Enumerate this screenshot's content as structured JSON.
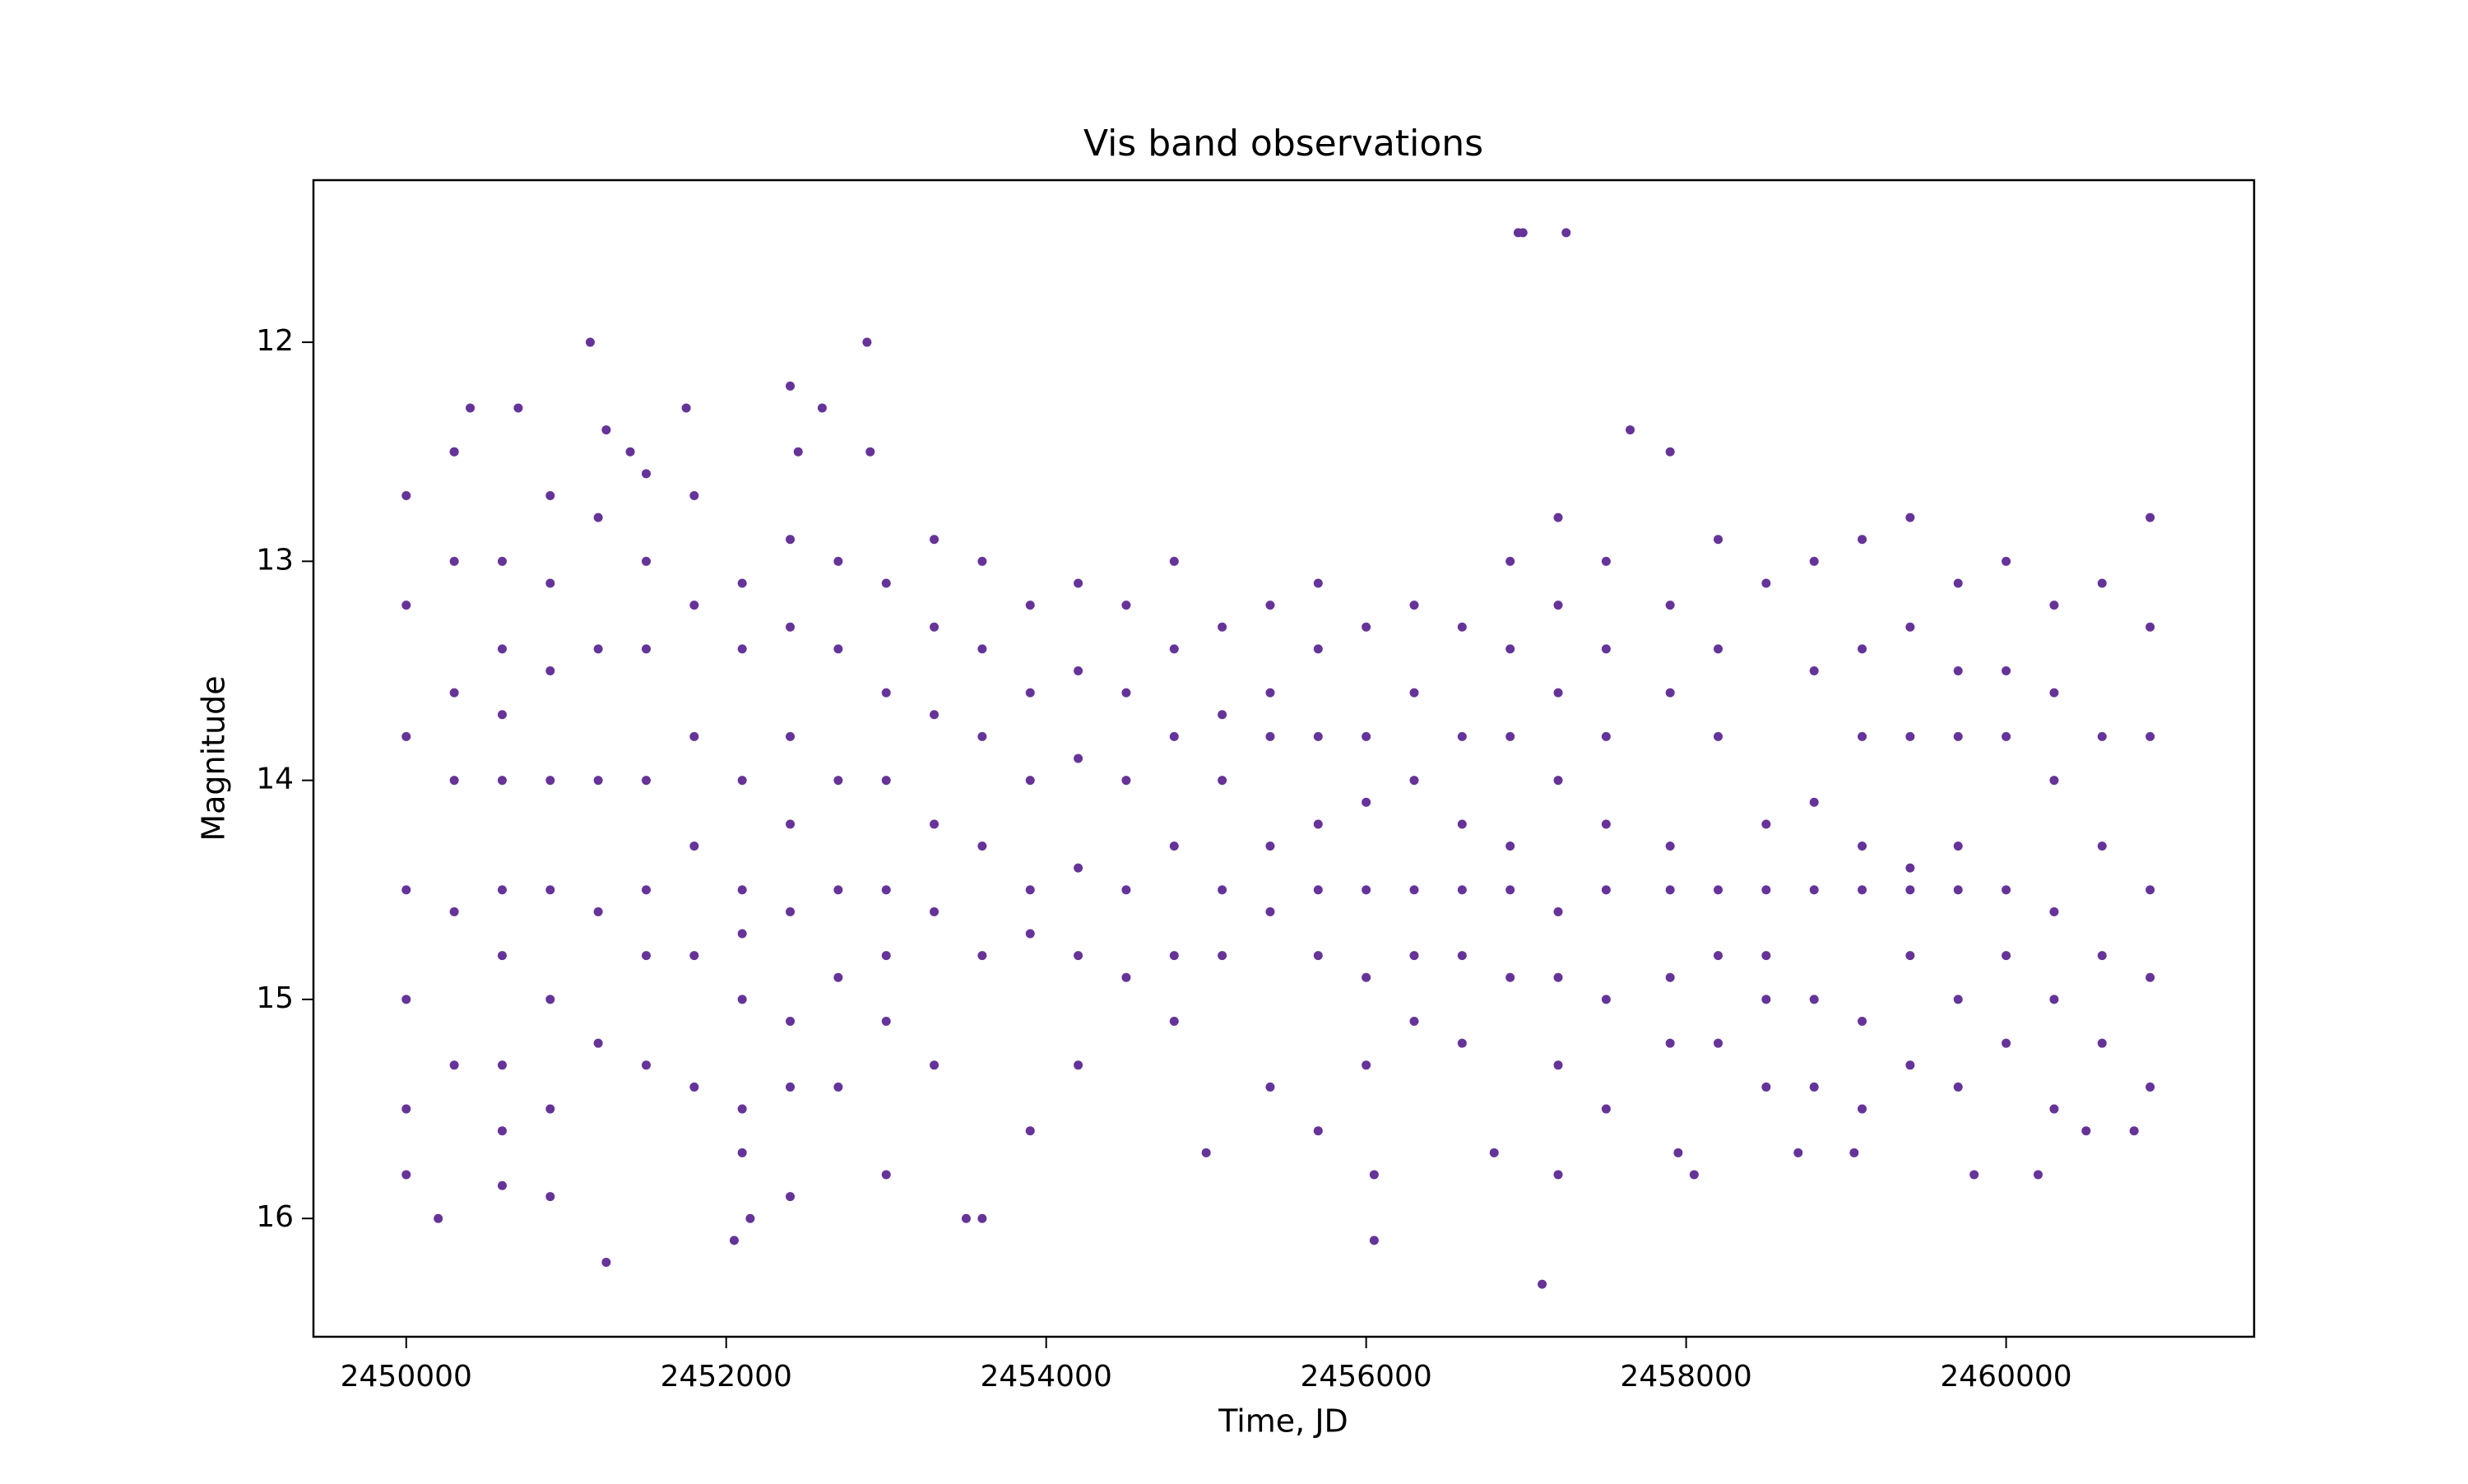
{
  "chart_data": {
    "type": "scatter",
    "title": "Vis band observations",
    "x_label": "Time, JD",
    "y_label": "Magnitude",
    "color": "#663399",
    "xlim": [
      2449420,
      2461550
    ],
    "ylim": [
      11.26,
      16.54
    ],
    "y_inverted": true,
    "xticks": [
      2450000,
      2452000,
      2454000,
      2456000,
      2458000,
      2460000
    ],
    "yticks": [
      12,
      13,
      14,
      15,
      16
    ],
    "x": [
      2450000,
      2450000,
      2450000,
      2450000,
      2450000,
      2450000,
      2450300,
      2450300,
      2450300,
      2450300,
      2450300,
      2450300,
      2450600,
      2450600,
      2450600,
      2450600,
      2450600,
      2450600,
      2450600,
      2450600,
      2450900,
      2450900,
      2450900,
      2450900,
      2450900,
      2450900,
      2450900,
      2451200,
      2451200,
      2451200,
      2451200,
      2451200,
      2451500,
      2451500,
      2451500,
      2451500,
      2451500,
      2451500,
      2451500,
      2451800,
      2451800,
      2451800,
      2451800,
      2451800,
      2451800,
      2452100,
      2452100,
      2452100,
      2452100,
      2452100,
      2452100,
      2452100,
      2452100,
      2452400,
      2452400,
      2452400,
      2452400,
      2452400,
      2452400,
      2452400,
      2452700,
      2452700,
      2452700,
      2452700,
      2452700,
      2452700,
      2453000,
      2453000,
      2453000,
      2453000,
      2453000,
      2453000,
      2453300,
      2453300,
      2453300,
      2453300,
      2453300,
      2453300,
      2453600,
      2453600,
      2453600,
      2453600,
      2453600,
      2453900,
      2453900,
      2453900,
      2453900,
      2453900,
      2453900,
      2454200,
      2454200,
      2454200,
      2454200,
      2454200,
      2454200,
      2454500,
      2454500,
      2454500,
      2454500,
      2454500,
      2454800,
      2454800,
      2454800,
      2454800,
      2454800,
      2454800,
      2455100,
      2455100,
      2455100,
      2455100,
      2455100,
      2455400,
      2455400,
      2455400,
      2455400,
      2455400,
      2455400,
      2455700,
      2455700,
      2455700,
      2455700,
      2455700,
      2455700,
      2456000,
      2456000,
      2456000,
      2456000,
      2456000,
      2456000,
      2456300,
      2456300,
      2456300,
      2456300,
      2456300,
      2456300,
      2456600,
      2456600,
      2456600,
      2456600,
      2456600,
      2456600,
      2456900,
      2456900,
      2456900,
      2456900,
      2456900,
      2456900,
      2457200,
      2457200,
      2457200,
      2457200,
      2457200,
      2457200,
      2457200,
      2457500,
      2457500,
      2457500,
      2457500,
      2457500,
      2457500,
      2457500,
      2457900,
      2457900,
      2457900,
      2457900,
      2457900,
      2457900,
      2458200,
      2458200,
      2458200,
      2458200,
      2458200,
      2458200,
      2458500,
      2458500,
      2458500,
      2458500,
      2458500,
      2458500,
      2458800,
      2458800,
      2458800,
      2458800,
      2458800,
      2458800,
      2459100,
      2459100,
      2459100,
      2459100,
      2459100,
      2459100,
      2459100,
      2459400,
      2459400,
      2459400,
      2459400,
      2459400,
      2459400,
      2459400,
      2459700,
      2459700,
      2459700,
      2459700,
      2459700,
      2459700,
      2459700,
      2460000,
      2460000,
      2460000,
      2460000,
      2460000,
      2460000,
      2460300,
      2460300,
      2460300,
      2460300,
      2460300,
      2460300,
      2460600,
      2460600,
      2460600,
      2460600,
      2460600,
      2460900,
      2460900,
      2460900,
      2460900,
      2460900,
      2460900,
      2456950,
      2456980,
      2457250,
      2451150,
      2452880,
      2452400,
      2450400,
      2451750,
      2452600,
      2450700,
      2451250,
      2457650,
      2450300,
      2451400,
      2452450,
      2452900,
      2457900,
      2451250,
      2452050,
      2456050,
      2457100,
      2450200,
      2453500,
      2453600,
      2452150,
      2450000,
      2452400,
      2450600,
      2450900,
      2453000,
      2458050,
      2456050,
      2460200,
      2459800,
      2460500,
      2460800,
      2455000,
      2456800,
      2455700,
      2458700,
      2459050,
      2457200,
      2457950
    ],
    "values": [
      12.7,
      13.2,
      13.8,
      14.5,
      15.0,
      15.5,
      12.5,
      13.0,
      13.6,
      14.0,
      14.6,
      15.3,
      13.0,
      13.4,
      13.7,
      14.0,
      14.5,
      14.8,
      15.3,
      15.6,
      12.7,
      13.1,
      13.5,
      14.0,
      14.5,
      15.0,
      15.5,
      12.8,
      13.4,
      14.0,
      14.6,
      15.2,
      12.6,
      13.0,
      13.4,
      14.0,
      14.5,
      14.8,
      15.3,
      12.7,
      13.2,
      13.8,
      14.3,
      14.8,
      15.4,
      13.1,
      13.4,
      14.0,
      14.5,
      14.7,
      15.0,
      15.5,
      15.7,
      12.9,
      13.3,
      13.8,
      14.2,
      14.6,
      15.1,
      15.4,
      13.0,
      13.4,
      14.0,
      14.5,
      14.9,
      15.4,
      13.1,
      13.6,
      14.0,
      14.5,
      14.8,
      15.1,
      12.9,
      13.3,
      13.7,
      14.2,
      14.6,
      15.3,
      13.0,
      13.4,
      13.8,
      14.3,
      14.8,
      13.2,
      13.6,
      14.0,
      14.5,
      14.7,
      15.6,
      13.1,
      13.5,
      13.9,
      14.4,
      14.8,
      15.3,
      13.2,
      13.6,
      14.0,
      14.5,
      14.9,
      13.0,
      13.4,
      13.8,
      14.3,
      14.8,
      15.1,
      13.3,
      13.7,
      14.0,
      14.5,
      14.8,
      13.2,
      13.6,
      13.8,
      14.3,
      14.6,
      15.4,
      13.1,
      13.4,
      13.8,
      14.2,
      14.5,
      14.8,
      13.3,
      13.8,
      14.1,
      14.5,
      14.9,
      15.3,
      13.2,
      13.6,
      14.0,
      14.5,
      14.8,
      15.1,
      13.3,
      13.8,
      14.2,
      14.5,
      14.8,
      15.2,
      13.0,
      13.4,
      13.8,
      14.3,
      14.5,
      14.9,
      12.8,
      13.2,
      13.6,
      14.0,
      14.6,
      14.9,
      15.3,
      13.0,
      13.4,
      13.8,
      14.2,
      14.5,
      15.0,
      15.5,
      13.2,
      13.6,
      14.3,
      14.5,
      14.9,
      15.2,
      12.9,
      13.4,
      13.8,
      14.5,
      14.8,
      15.2,
      13.1,
      14.2,
      14.5,
      14.8,
      15.0,
      15.4,
      13.0,
      13.5,
      14.1,
      14.5,
      15.0,
      15.4,
      12.9,
      13.4,
      13.8,
      14.3,
      14.5,
      15.1,
      15.5,
      12.8,
      13.3,
      13.8,
      14.4,
      14.5,
      14.8,
      15.3,
      13.1,
      13.5,
      13.8,
      14.3,
      14.5,
      15.0,
      15.4,
      13.0,
      13.5,
      13.8,
      14.5,
      14.8,
      15.2,
      13.2,
      13.6,
      14.0,
      14.6,
      15.0,
      15.5,
      13.1,
      13.8,
      14.3,
      14.8,
      15.2,
      12.8,
      13.3,
      13.8,
      14.5,
      14.9,
      15.4,
      11.5,
      11.5,
      11.5,
      12,
      12,
      12.2,
      12.3,
      12.3,
      12.3,
      12.3,
      12.4,
      12.4,
      12.5,
      12.5,
      12.5,
      12.5,
      12.5,
      16.2,
      16.1,
      16.1,
      16.3,
      16.0,
      16.0,
      16.0,
      16.0,
      15.8,
      15.9,
      15.85,
      15.9,
      15.8,
      15.8,
      15.8,
      15.8,
      15.8,
      15.6,
      15.6,
      15.7,
      15.7,
      15.6,
      15.7,
      15.7,
      15.8,
      15.7
    ]
  }
}
